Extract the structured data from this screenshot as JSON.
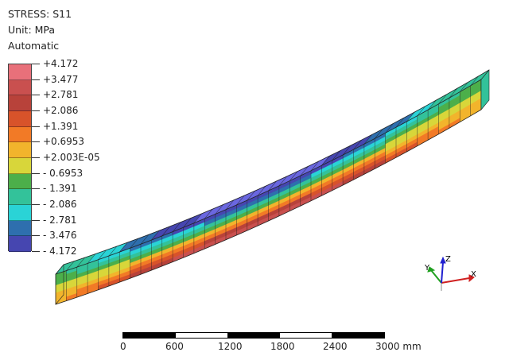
{
  "legend": {
    "variable_label": "STRESS: S11",
    "unit_label": "Unit: MPa",
    "mode_label": "Automatic",
    "bands": [
      {
        "value": "+4.172",
        "color": "#e8707a"
      },
      {
        "value": "+3.477",
        "color": "#c9504f"
      },
      {
        "value": "+2.781",
        "color": "#b8423a"
      },
      {
        "value": "+2.086",
        "color": "#d8532a"
      },
      {
        "value": "+1.391",
        "color": "#f27a26"
      },
      {
        "value": "+0.6953",
        "color": "#f2b42c"
      },
      {
        "value": "+2.003E-05",
        "color": "#d8d63a"
      },
      {
        "value": "- 0.6953",
        "color": "#4caf4a"
      },
      {
        "value": "- 1.391",
        "color": "#33c29a"
      },
      {
        "value": "- 2.086",
        "color": "#2ad3d6"
      },
      {
        "value": "- 2.781",
        "color": "#2e6fae"
      },
      {
        "value": "- 3.476",
        "color": "#4646b0"
      },
      {
        "value": "- 4.172",
        "color": "#6a67e0"
      }
    ]
  },
  "triad": {
    "x_label": "X",
    "y_label": "Y",
    "z_label": "Z",
    "x_color": "#d02020",
    "y_color": "#20a020",
    "z_color": "#2020d0"
  },
  "scale": {
    "labels": [
      "0",
      "600",
      "1200",
      "1800",
      "2400",
      "3000 mm"
    ]
  }
}
